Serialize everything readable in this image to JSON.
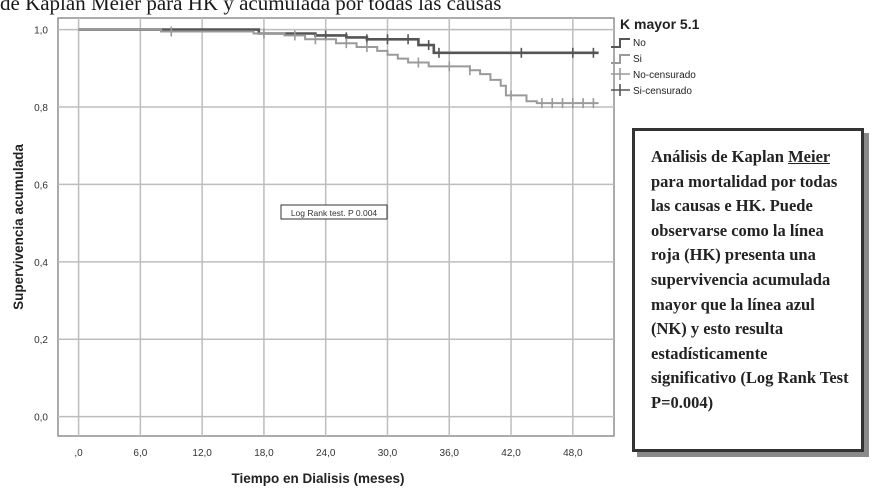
{
  "caption_fragment": "de Kaplan Meier para HK y acumulada por todas las causas",
  "chart_data": {
    "type": "line",
    "xlabel": "Tiempo en Dialisis (meses)",
    "ylabel": "Supervivencia acumulada",
    "xlim": [
      -2,
      52
    ],
    "ylim": [
      -0.05,
      1.03
    ],
    "x_ticks": [
      0,
      6,
      12,
      18,
      24,
      30,
      36,
      42,
      48
    ],
    "x_tick_labels": [
      ",0",
      "6,0",
      "12,0",
      "18,0",
      "24,0",
      "30,0",
      "36,0",
      "42,0",
      "48,0"
    ],
    "y_ticks": [
      0,
      0.2,
      0.4,
      0.6,
      0.8,
      1.0
    ],
    "y_tick_labels": [
      "0,0",
      "0,2",
      "0,4",
      "0,6",
      "0,8",
      "1,0"
    ],
    "grid": true,
    "legend": {
      "title": "K mayor 5.1",
      "placement": "top-right",
      "entries": [
        "No",
        "Si",
        "No-censurado",
        "Si-censurado"
      ]
    },
    "annotation": "Log Rank test. P 0.004",
    "series": [
      {
        "name": "No",
        "color": "#555555",
        "steps": [
          [
            0,
            1.0
          ],
          [
            17.5,
            0.99
          ],
          [
            23,
            0.985
          ],
          [
            26,
            0.98
          ],
          [
            28,
            0.975
          ],
          [
            33,
            0.96
          ],
          [
            34.5,
            0.94
          ],
          [
            50.5,
            0.94
          ]
        ],
        "censored_x": [
          24,
          26,
          28,
          30,
          32,
          34,
          35,
          43,
          48,
          50
        ]
      },
      {
        "name": "Si",
        "color": "#9a9a9a",
        "steps": [
          [
            0,
            1.0
          ],
          [
            8,
            0.995
          ],
          [
            17,
            0.99
          ],
          [
            20,
            0.985
          ],
          [
            22,
            0.975
          ],
          [
            25,
            0.965
          ],
          [
            27,
            0.955
          ],
          [
            29,
            0.945
          ],
          [
            30,
            0.935
          ],
          [
            31,
            0.925
          ],
          [
            32,
            0.915
          ],
          [
            34,
            0.905
          ],
          [
            38,
            0.895
          ],
          [
            39,
            0.885
          ],
          [
            40,
            0.87
          ],
          [
            41,
            0.855
          ],
          [
            41.5,
            0.83
          ],
          [
            43.5,
            0.815
          ],
          [
            44.5,
            0.81
          ],
          [
            50.5,
            0.81
          ]
        ],
        "censored_x": [
          9,
          18,
          21,
          23,
          26,
          28,
          33,
          36,
          38,
          42,
          45,
          46,
          47,
          48,
          49,
          50
        ]
      }
    ]
  },
  "note": {
    "before": "Análisis de Kaplan ",
    "underlined": "Meier",
    "after": " para mortalidad por todas las causas e HK. Puede observarse como la línea roja (HK) presenta una supervivencia acumulada mayor que la línea azul (NK) y esto resulta estadísticamente significativo (Log Rank Test P=0.004)"
  }
}
